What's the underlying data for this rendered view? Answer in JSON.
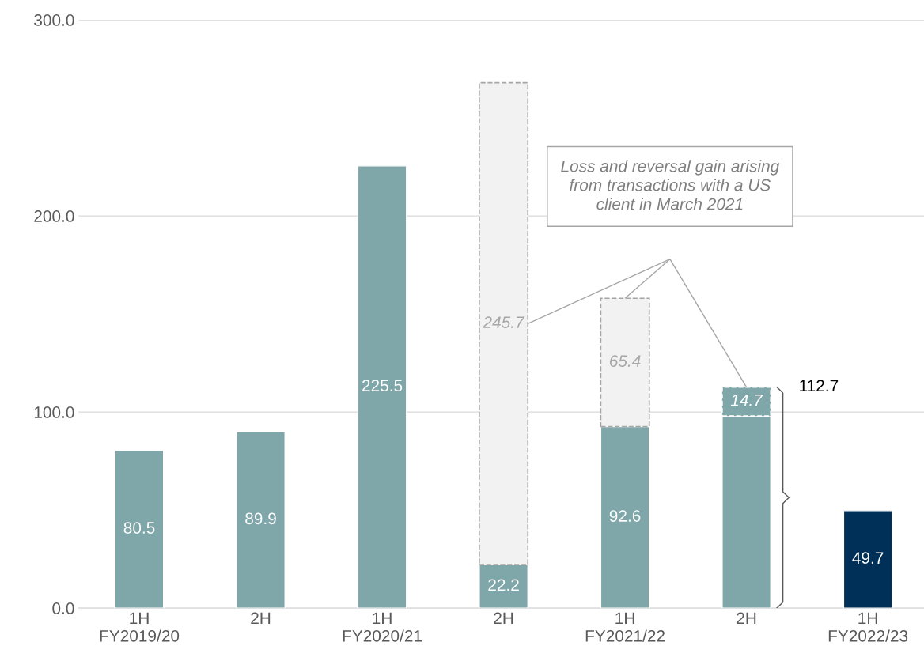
{
  "chart_data": {
    "type": "bar",
    "stacked": true,
    "categories": [
      "1H\nFY2019/20",
      "2H",
      "1H\nFY2020/21",
      "2H",
      "1H\nFY2021/22",
      "2H",
      "1H\nFY2022/23"
    ],
    "series": [
      {
        "colors": [
          "#7fa7aa",
          "#7fa7aa",
          "#7fa7aa",
          "#7fa7aa",
          "#7fa7aa",
          "#7fa7aa",
          "#003057"
        ],
        "values": [
          80.5,
          89.9,
          225.5,
          22.2,
          92.6,
          98.0,
          49.7
        ],
        "value_labels": [
          "80.5",
          "89.9",
          "225.5",
          "22.2",
          "92.6",
          null,
          "49.7"
        ]
      },
      {
        "colors": [
          null,
          null,
          null,
          "#f2f2f2",
          "#f2f2f2",
          "#7fa7aa",
          null
        ],
        "line_style": "dashed",
        "values": [
          null,
          null,
          null,
          245.7,
          65.4,
          14.7,
          null
        ],
        "value_labels": [
          null,
          null,
          null,
          "245.7",
          "65.4",
          "14.7",
          null
        ]
      }
    ],
    "totals": [
      null,
      null,
      null,
      null,
      null,
      "112.7",
      null
    ],
    "annotations": [
      "Loss and reversal gain arising from transactions with a US client in March 2021"
    ],
    "ylim": [
      0,
      300
    ],
    "yticks": [
      {
        "value": 0,
        "label": "0.0"
      },
      {
        "value": 100,
        "label": "100.0"
      },
      {
        "value": 200,
        "label": "200.0"
      },
      {
        "value": 300,
        "label": "300.0"
      }
    ],
    "grid": "y",
    "legend": false
  }
}
